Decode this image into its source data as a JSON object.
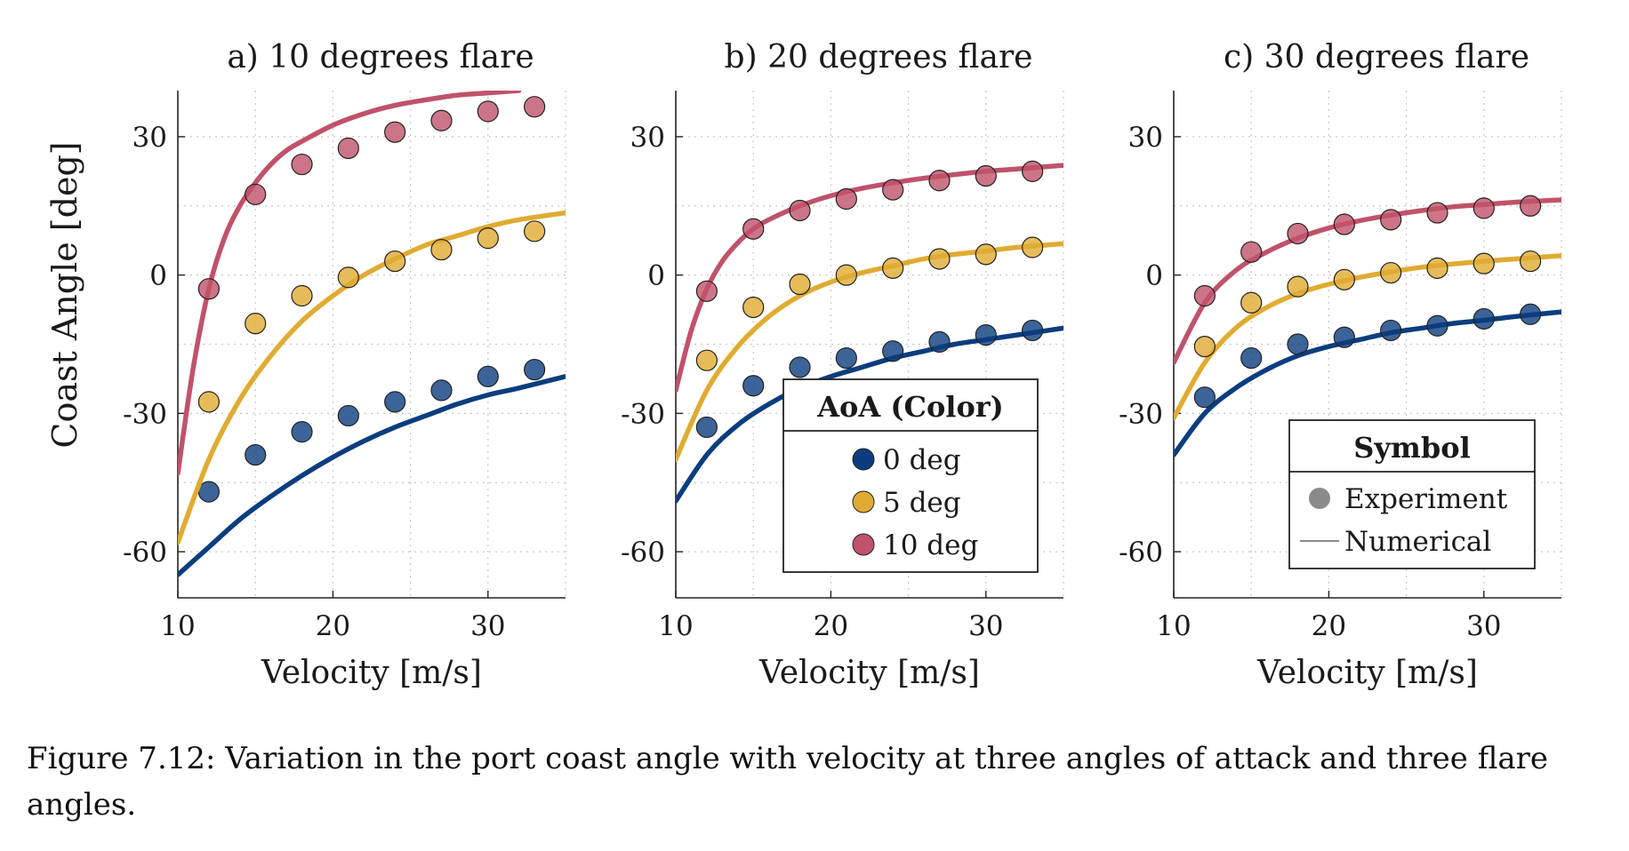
{
  "figure": {
    "y_axis_label": "Coast Angle [deg]",
    "caption": "Figure 7.12: Variation in the port coast angle with velocity at three angles of attack and three flare angles."
  },
  "colors": {
    "aoa_0": "#0b3d7e",
    "aoa_5": "#e0ab32",
    "aoa_10": "#c0526a",
    "grid": "#c8c8c8",
    "axis": "#222222"
  },
  "legend_color": {
    "title": "AoA (Color)",
    "items": [
      {
        "label": "0 deg",
        "color": "#0b3d7e"
      },
      {
        "label": "5 deg",
        "color": "#e0ab32"
      },
      {
        "label": "10 deg",
        "color": "#c0526a"
      }
    ]
  },
  "legend_symbol": {
    "title": "Symbol",
    "items": [
      {
        "label": "Experiment",
        "kind": "marker"
      },
      {
        "label": "Numerical",
        "kind": "line"
      }
    ]
  },
  "chart_data": [
    {
      "type": "scatter",
      "title": "a) 10 degrees flare",
      "xlabel": "Velocity [m/s]",
      "ylabel": "Coast Angle [deg]",
      "xlim": [
        10,
        35
      ],
      "ylim": [
        -70,
        40
      ],
      "xticks": [
        10,
        20,
        30
      ],
      "yticks": [
        -60,
        -30,
        0,
        30
      ],
      "grid": true,
      "series": [
        {
          "name": "0 deg",
          "color_key": "aoa_0",
          "experiment": {
            "x": [
              12,
              15,
              18,
              21,
              24,
              27,
              30,
              33
            ],
            "y": [
              -47,
              -39,
              -34,
              -30.5,
              -27.5,
              -25,
              -22,
              -20.5
            ]
          },
          "numerical": {
            "x": [
              10,
              12,
              14,
              16,
              18,
              20,
              22,
              24,
              26,
              28,
              30,
              32,
              35
            ],
            "y": [
              -65,
              -59,
              -53,
              -48,
              -43.5,
              -39.5,
              -36,
              -33,
              -30.5,
              -28,
              -26,
              -24.5,
              -22
            ]
          }
        },
        {
          "name": "5 deg",
          "color_key": "aoa_5",
          "experiment": {
            "x": [
              12,
              15,
              18,
              21,
              24,
              27,
              30,
              33
            ],
            "y": [
              -27.5,
              -10.5,
              -4.5,
              -0.5,
              3,
              5.5,
              8,
              9.5
            ]
          },
          "numerical": {
            "x": [
              10,
              12,
              14,
              16,
              18,
              20,
              22,
              24,
              26,
              28,
              30,
              32,
              35
            ],
            "y": [
              -58,
              -40,
              -27,
              -17.5,
              -10,
              -4.5,
              0,
              3.5,
              6.5,
              8.5,
              10.5,
              12,
              13.5
            ]
          }
        },
        {
          "name": "10 deg",
          "color_key": "aoa_10",
          "experiment": {
            "x": [
              12,
              15,
              18,
              21,
              24,
              27,
              30,
              33
            ],
            "y": [
              -3,
              17.5,
              24,
              27.5,
              31,
              33.5,
              35.5,
              36.5
            ]
          },
          "numerical": {
            "x": [
              10,
              11,
              12,
              13,
              14,
              15,
              16,
              17,
              18,
              20,
              22,
              24,
              26,
              28,
              30,
              32
            ],
            "y": [
              -43,
              -20,
              -3,
              8,
              15,
              20,
              24,
              27,
              29,
              32.5,
              35,
              36.8,
              38,
              39,
              39.5,
              40
            ]
          }
        }
      ]
    },
    {
      "type": "scatter",
      "title": "b) 20 degrees flare",
      "xlabel": "Velocity [m/s]",
      "xlim": [
        10,
        35
      ],
      "ylim": [
        -70,
        40
      ],
      "xticks": [
        10,
        20,
        30
      ],
      "yticks": [
        -60,
        -30,
        0,
        30
      ],
      "grid": true,
      "series": [
        {
          "name": "0 deg",
          "color_key": "aoa_0",
          "experiment": {
            "x": [
              12,
              15,
              18,
              21,
              24,
              27,
              30,
              33
            ],
            "y": [
              -33,
              -24,
              -20,
              -18,
              -16.5,
              -14.5,
              -13,
              -12
            ]
          },
          "numerical": {
            "x": [
              10,
              12,
              14,
              16,
              18,
              20,
              22,
              24,
              26,
              28,
              30,
              32,
              35
            ],
            "y": [
              -49,
              -39,
              -32.5,
              -28,
              -24.5,
              -22,
              -20,
              -18,
              -16.5,
              -15,
              -14,
              -13,
              -11.5
            ]
          }
        },
        {
          "name": "5 deg",
          "color_key": "aoa_5",
          "experiment": {
            "x": [
              12,
              15,
              18,
              21,
              24,
              27,
              30,
              33
            ],
            "y": [
              -18.5,
              -7,
              -2,
              0,
              1.5,
              3.5,
              4.5,
              6
            ]
          },
          "numerical": {
            "x": [
              10,
              12,
              14,
              16,
              18,
              20,
              22,
              24,
              26,
              28,
              30,
              32,
              35
            ],
            "y": [
              -40,
              -25,
              -15.5,
              -9,
              -4.5,
              -1.5,
              0.5,
              2,
              3.5,
              4.5,
              5.2,
              6,
              6.8
            ]
          }
        },
        {
          "name": "10 deg",
          "color_key": "aoa_10",
          "experiment": {
            "x": [
              12,
              15,
              18,
              21,
              24,
              27,
              30,
              33
            ],
            "y": [
              -3.5,
              10,
              14,
              16.5,
              18.5,
              20.5,
              21.5,
              22.5
            ]
          },
          "numerical": {
            "x": [
              10,
              11,
              12,
              13,
              14,
              15,
              16,
              18,
              20,
              22,
              24,
              26,
              28,
              30,
              32,
              35
            ],
            "y": [
              -25,
              -12,
              -3,
              3,
              7,
              10,
              12,
              15,
              17.2,
              18.8,
              20,
              21,
              21.8,
              22.5,
              23,
              23.8
            ]
          }
        }
      ]
    },
    {
      "type": "scatter",
      "title": "c) 30 degrees flare",
      "xlabel": "Velocity [m/s]",
      "xlim": [
        10,
        35
      ],
      "ylim": [
        -70,
        40
      ],
      "xticks": [
        10,
        20,
        30
      ],
      "yticks": [
        -60,
        -30,
        0,
        30
      ],
      "grid": true,
      "series": [
        {
          "name": "0 deg",
          "color_key": "aoa_0",
          "experiment": {
            "x": [
              12,
              15,
              18,
              21,
              24,
              27,
              30,
              33
            ],
            "y": [
              -26.5,
              -18,
              -15,
              -13.5,
              -12,
              -11,
              -9.5,
              -8.5
            ]
          },
          "numerical": {
            "x": [
              10,
              12,
              14,
              16,
              18,
              20,
              22,
              24,
              26,
              28,
              30,
              32,
              35
            ],
            "y": [
              -39,
              -30,
              -24.5,
              -20.5,
              -17.5,
              -15.5,
              -14,
              -12.5,
              -11.5,
              -10.5,
              -9.8,
              -9,
              -8
            ]
          }
        },
        {
          "name": "5 deg",
          "color_key": "aoa_5",
          "experiment": {
            "x": [
              12,
              15,
              18,
              21,
              24,
              27,
              30,
              33
            ],
            "y": [
              -15.5,
              -6,
              -2.5,
              -1,
              0.5,
              1.5,
              2.5,
              3
            ]
          },
          "numerical": {
            "x": [
              10,
              12,
              14,
              16,
              18,
              20,
              22,
              24,
              26,
              28,
              30,
              32,
              35
            ],
            "y": [
              -31,
              -19,
              -11.5,
              -7,
              -4,
              -2,
              -0.5,
              0.7,
              1.7,
              2.4,
              3,
              3.5,
              4.2
            ]
          }
        },
        {
          "name": "10 deg",
          "color_key": "aoa_10",
          "experiment": {
            "x": [
              12,
              15,
              18,
              21,
              24,
              27,
              30,
              33
            ],
            "y": [
              -4.5,
              5,
              9,
              11,
              12,
              13.5,
              14.5,
              15
            ]
          },
          "numerical": {
            "x": [
              10,
              12,
              14,
              16,
              18,
              20,
              22,
              24,
              26,
              28,
              30,
              32,
              35
            ],
            "y": [
              -19,
              -6,
              1,
              5,
              8,
              10.2,
              11.8,
              13,
              14,
              14.8,
              15.3,
              15.8,
              16.3
            ]
          }
        }
      ]
    }
  ]
}
